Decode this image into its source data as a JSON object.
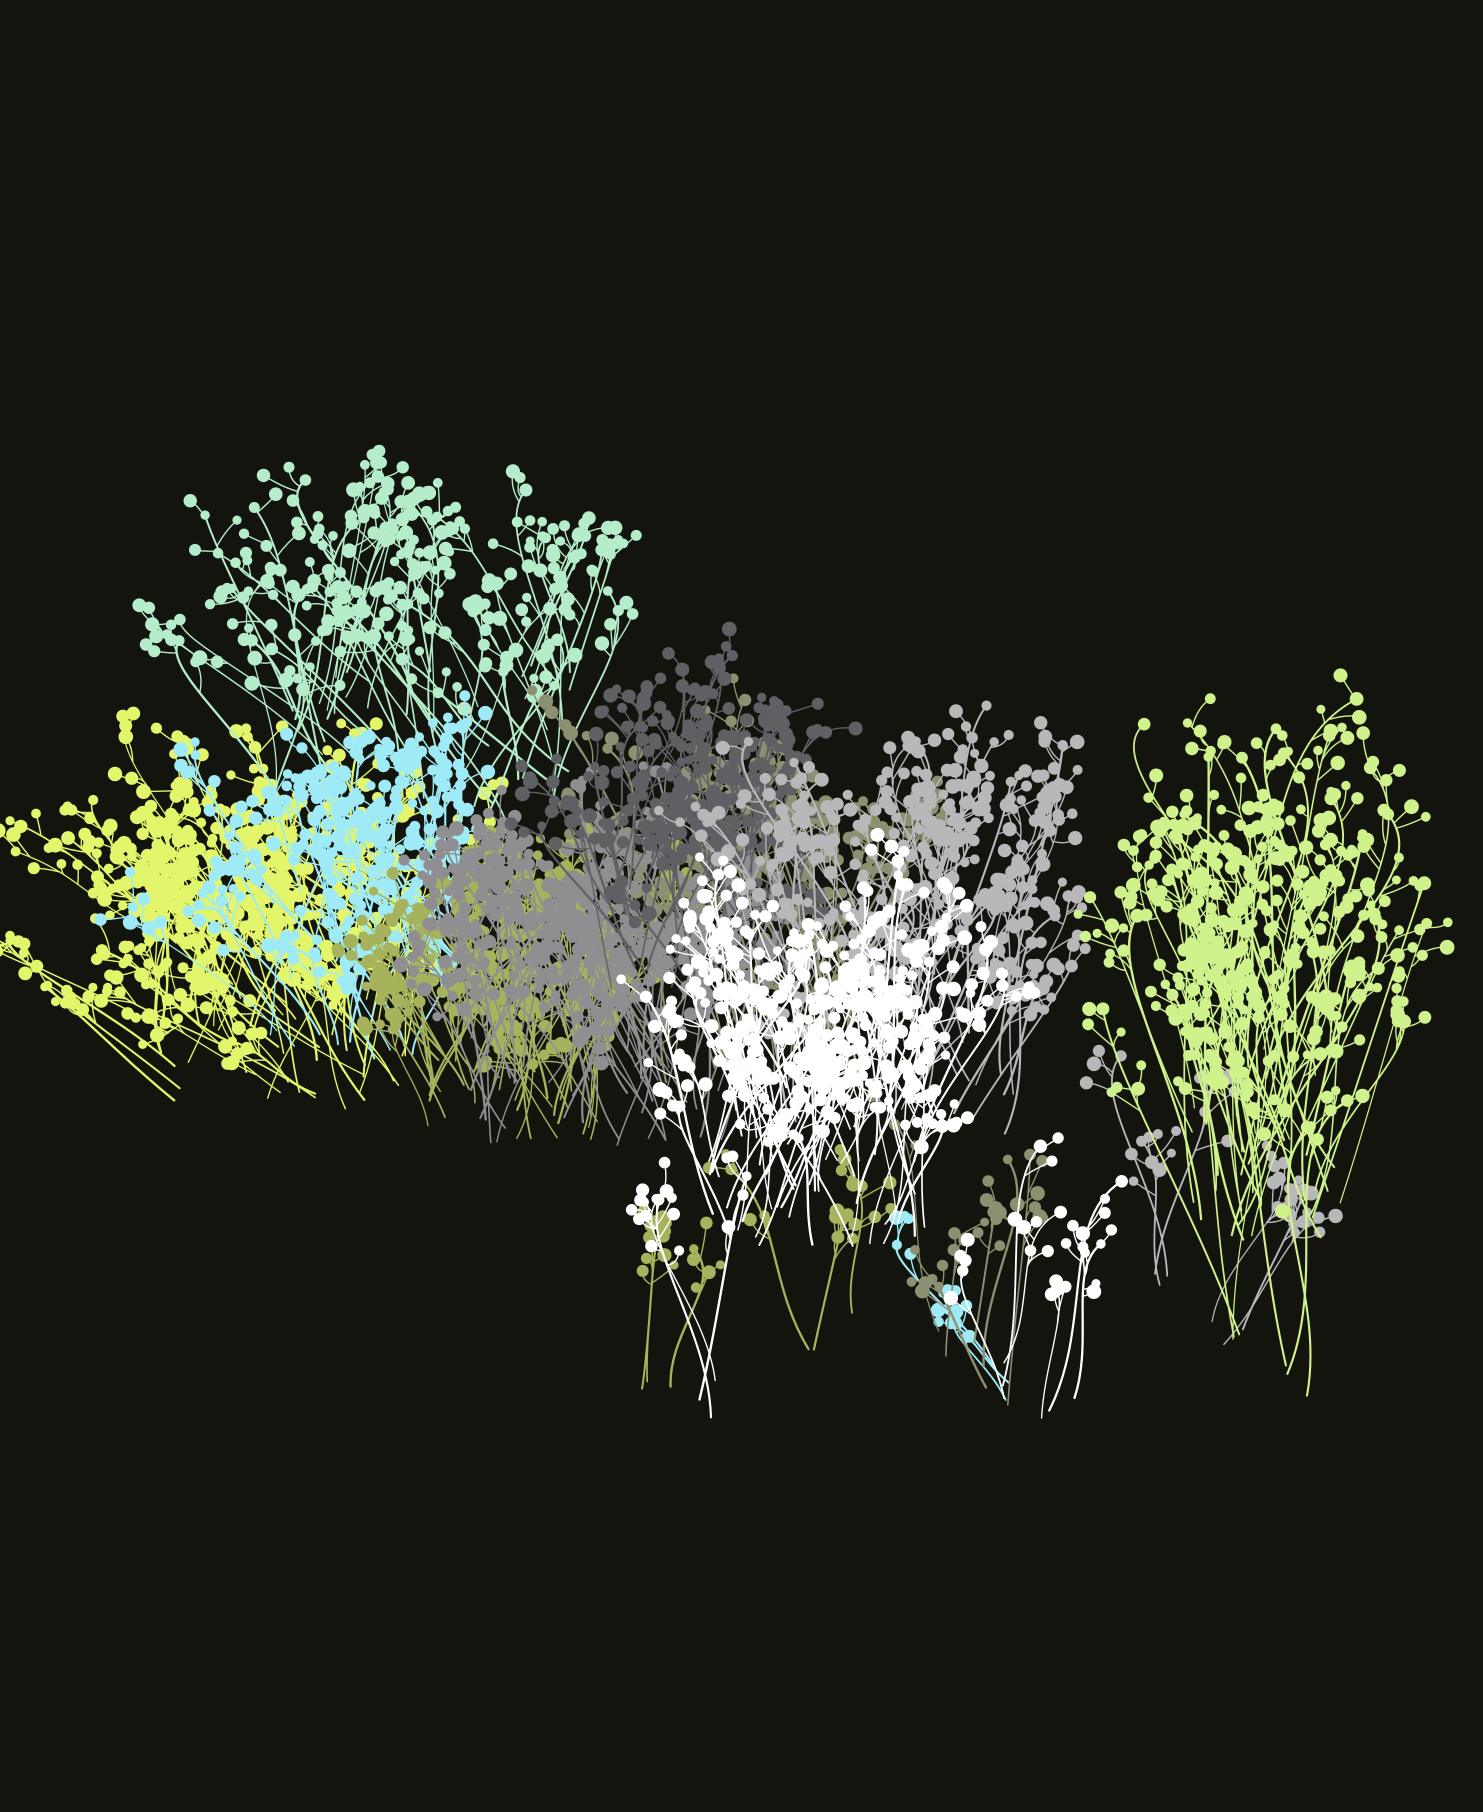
{
  "artwork": {
    "background": "#12140d",
    "palette": {
      "yellow_green": "#e3f56a",
      "mint": "#b5edca",
      "sky_blue": "#9eeaf7",
      "olive": "#a6b35c",
      "sage": "#8a9070",
      "grey": "#8f8f92",
      "dark_grey": "#5f6063",
      "light_grey": "#b8b8bb",
      "white": "#ffffff",
      "lime": "#cff28c"
    },
    "clusters": [
      {
        "name": "yellow-green-burst",
        "color_key": "yellow_green"
      },
      {
        "name": "mint-burst",
        "color_key": "mint"
      },
      {
        "name": "sky-blue-burst",
        "color_key": "sky_blue"
      },
      {
        "name": "olive-burst",
        "color_key": "olive"
      },
      {
        "name": "sage-burst",
        "color_key": "sage"
      },
      {
        "name": "grey-burst",
        "color_key": "grey"
      },
      {
        "name": "dark-grey-burst",
        "color_key": "dark_grey"
      },
      {
        "name": "light-grey-burst",
        "color_key": "light_grey"
      },
      {
        "name": "white-burst",
        "color_key": "white"
      },
      {
        "name": "lime-burst",
        "color_key": "lime"
      }
    ]
  }
}
